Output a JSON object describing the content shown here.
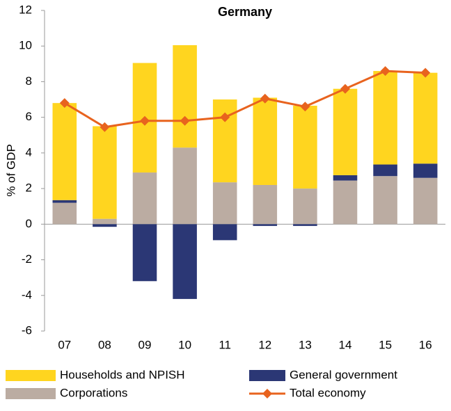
{
  "chart_data": {
    "type": "bar",
    "stacked": true,
    "title": "Germany",
    "y_label": "% of GDP",
    "categories": [
      "07",
      "08",
      "09",
      "10",
      "11",
      "12",
      "13",
      "14",
      "15",
      "16"
    ],
    "series": [
      {
        "name": "Households and NPISH",
        "color": "#ffd51f",
        "values": [
          5.45,
          5.2,
          6.15,
          5.75,
          4.65,
          4.9,
          4.65,
          4.85,
          5.25,
          5.1
        ]
      },
      {
        "name": "General government",
        "color": "#2b3775",
        "values": [
          0.15,
          -0.15,
          -3.2,
          -4.2,
          -0.9,
          -0.1,
          -0.1,
          0.3,
          0.65,
          0.8
        ]
      },
      {
        "name": "Corporations",
        "color": "#bbaca2",
        "values": [
          1.2,
          0.3,
          2.9,
          4.3,
          2.35,
          2.2,
          2.0,
          2.45,
          2.7,
          2.6
        ]
      },
      {
        "name": "Total economy",
        "type": "line",
        "color": "#e8631e",
        "values": [
          6.8,
          5.45,
          5.8,
          5.8,
          6.0,
          7.05,
          6.6,
          7.6,
          8.6,
          8.5
        ]
      }
    ],
    "ylim": [
      -6,
      12
    ],
    "yticks": [
      -6,
      -4,
      -2,
      0,
      2,
      4,
      6,
      8,
      10,
      12
    ],
    "grid": false,
    "legend": "bottom"
  }
}
